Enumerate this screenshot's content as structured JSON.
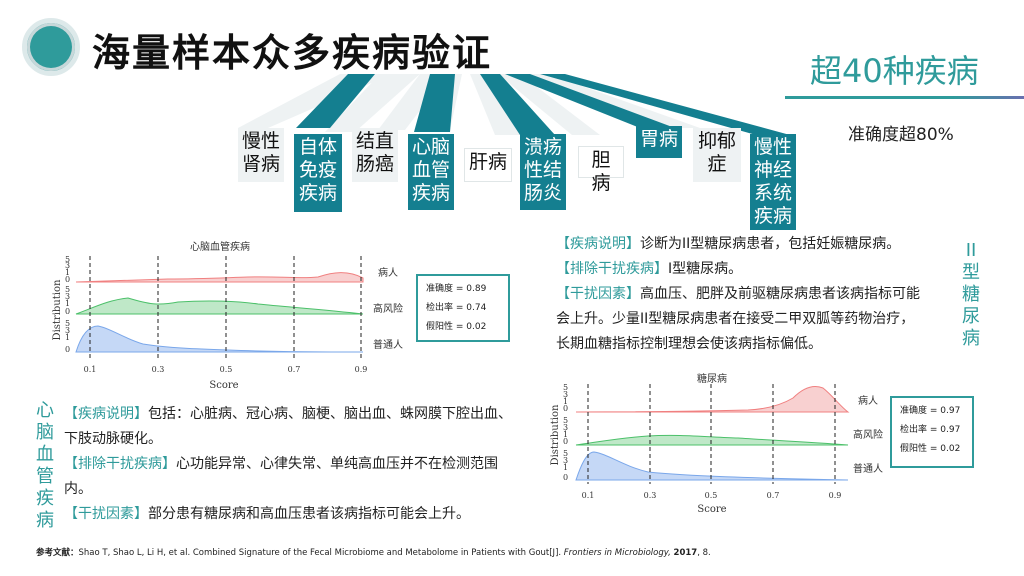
{
  "title": "海量样本众多疾病验证",
  "highlight": "超40种疾病",
  "accuracy": "准确度超80%",
  "diseases": [
    {
      "label": "慢性肾病"
    },
    {
      "label": "自体免疫疾病"
    },
    {
      "label": "结直肠癌"
    },
    {
      "label": "心脑血管疾病"
    },
    {
      "label": "肝病"
    },
    {
      "label": "溃疡性结肠炎"
    },
    {
      "label": "胆病"
    },
    {
      "label": "胃病"
    },
    {
      "label": "抑郁症"
    },
    {
      "label": "慢性神经系统疾病"
    }
  ],
  "cardio": {
    "vertical_label": "心脑血管疾病",
    "chart": {
      "title": "心脑血管疾病",
      "xlabel": "Score",
      "ylabel": "Distribution",
      "xticks": [
        "0.1",
        "0.3",
        "0.5",
        "0.7",
        "0.9"
      ],
      "groups": [
        "病人",
        "高风险",
        "普通人"
      ],
      "stats": [
        "准确度 = 0.89",
        "检出率 = 0.74",
        "假阳性 = 0.02"
      ]
    },
    "description": {
      "tag": "【疾病说明】",
      "text": "包括：心脏病、冠心病、脑梗、脑出血、蛛网膜下腔出血、下肢动脉硬化。"
    },
    "exclusion": {
      "tag": "【排除干扰疾病】",
      "text": "心功能异常、心律失常、单纯高血压并不在检测范围内。"
    },
    "interference": {
      "tag": "【干扰因素】",
      "text": "部分患有糖尿病和高血压患者该病指标可能会上升。"
    }
  },
  "diabetes": {
    "vertical_label": "II型糖尿病",
    "chart": {
      "title": "糖尿病",
      "xlabel": "Score",
      "ylabel": "Distribution",
      "xticks": [
        "0.1",
        "0.3",
        "0.5",
        "0.7",
        "0.9"
      ],
      "groups": [
        "病人",
        "高风险",
        "普通人"
      ],
      "stats": [
        "准确度 = 0.97",
        "检出率 = 0.97",
        "假阳性 = 0.02"
      ]
    },
    "description": {
      "tag": "【疾病说明】",
      "text": "诊断为II型糖尿病患者，包括妊娠糖尿病。"
    },
    "exclusion": {
      "tag": "【排除干扰疾病】",
      "text": "I型糖尿病。"
    },
    "interference": {
      "tag": "【干扰因素】",
      "text": "高血压、肥胖及前驱糖尿病患者该病指标可能会上升。少量II型糖尿病患者在接受二甲双胍等药物治疗，长期血糖指标控制理想会使该病指标偏低。"
    }
  },
  "reference": {
    "prefix": "参考文献：",
    "text": "Shao T, Shao L, Li H, et al. Combined Signature of the Fecal Microbiome and Metabolome in Patients with Gout[J].",
    "journal": "Frontiers in Microbiology,",
    "year": "2017",
    "pages": ", 8."
  },
  "colors": {
    "accent": "#2f9b9b",
    "tag_dark": "#147f90",
    "tag_light": "#eef2f3",
    "patient": "#f08080",
    "risk": "#4cc06a",
    "normal": "#7aa7ea"
  }
}
